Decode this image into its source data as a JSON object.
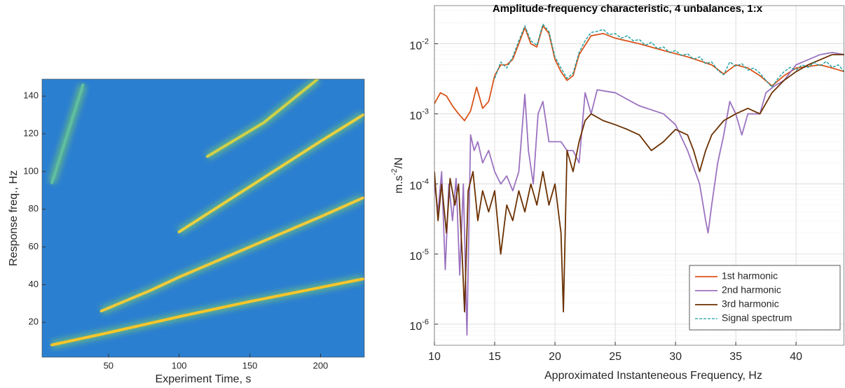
{
  "chart_data": [
    {
      "type": "spectrogram",
      "x_label": "Experiment Time, s",
      "y_label": "Response freq., Hz",
      "xlim": [
        3,
        231
      ],
      "ylim": [
        1.5,
        149
      ],
      "xticks": [
        50,
        100,
        150,
        200
      ],
      "yticks": [
        20,
        40,
        60,
        80,
        100,
        120,
        140
      ],
      "background": "#2b7fd0",
      "series": [
        {
          "color": "#f7c52a",
          "x": [
            10,
            50,
            100,
            150,
            200,
            230
          ],
          "values": [
            8,
            14.5,
            23,
            31,
            38.5,
            43
          ]
        },
        {
          "color": "#f2c93a",
          "x": [
            45,
            80,
            100,
            150,
            200,
            230
          ],
          "values": [
            26,
            37,
            44,
            60,
            76,
            86
          ]
        },
        {
          "color": "#e9cf40",
          "x": [
            100,
            150,
            200,
            230
          ],
          "values": [
            68,
            92,
            116,
            130
          ]
        },
        {
          "color": "#cfd04a",
          "x": [
            120,
            160,
            198
          ],
          "values": [
            108,
            126,
            149
          ]
        },
        {
          "color": "#5fbfa0",
          "x": [
            10,
            32
          ],
          "values": [
            94,
            146
          ]
        }
      ]
    },
    {
      "type": "line",
      "title": "Amplitude-frequency characteristic, 4 unbalances, 1:x",
      "x_label": "Approximated Instanteneous Frequency, Hz",
      "y_label": {
        "text": "m.s",
        "superscript": "-2",
        "suffix": "/N"
      },
      "log_y": true,
      "grid": true,
      "minor_grid": true,
      "legend": "lower right",
      "xlim": [
        10,
        44
      ],
      "ylim": [
        5e-07,
        0.035
      ],
      "xticks": [
        10,
        15,
        20,
        25,
        30,
        35,
        40
      ],
      "yticks": [
        {
          "value": 1e-06,
          "label": "10",
          "exponent": "-6"
        },
        {
          "value": 1e-05,
          "label": "10",
          "exponent": "-5"
        },
        {
          "value": 0.0001,
          "label": "10",
          "exponent": "-4"
        },
        {
          "value": 0.001,
          "label": "10",
          "exponent": "-3"
        },
        {
          "value": 0.01,
          "label": "10",
          "exponent": "-2"
        }
      ],
      "series": [
        {
          "name": "1st harmonic",
          "color": "#d95319",
          "linestyle": "solid",
          "x": [
            10,
            10.5,
            11,
            11.5,
            12,
            12.5,
            13,
            13.5,
            14,
            14.5,
            15,
            15.5,
            16,
            16.5,
            17,
            17.5,
            18,
            18.5,
            19,
            19.5,
            20,
            20.5,
            21,
            21.5,
            22,
            23,
            24,
            25,
            27,
            29,
            31,
            33,
            34,
            35,
            36,
            37,
            38,
            39,
            40,
            42,
            43,
            44
          ],
          "values": [
            0.0014,
            0.002,
            0.0018,
            0.0013,
            0.001,
            0.0008,
            0.0011,
            0.0024,
            0.0012,
            0.0015,
            0.0035,
            0.005,
            0.005,
            0.006,
            0.01,
            0.017,
            0.01,
            0.009,
            0.018,
            0.014,
            0.006,
            0.004,
            0.003,
            0.0035,
            0.007,
            0.013,
            0.014,
            0.012,
            0.01,
            0.008,
            0.0065,
            0.005,
            0.0037,
            0.005,
            0.0045,
            0.0035,
            0.0025,
            0.0035,
            0.0045,
            0.005,
            0.0045,
            0.004
          ]
        },
        {
          "name": "2nd harmonic",
          "color": "#9b72c0",
          "linestyle": "solid",
          "x": [
            10,
            10.3,
            10.6,
            10.9,
            11.2,
            11.5,
            11.8,
            12.1,
            12.4,
            12.7,
            13,
            13.3,
            13.6,
            14,
            14.5,
            15,
            15.5,
            16,
            16.5,
            17,
            17.5,
            17.8,
            18.2,
            18.6,
            19,
            19.5,
            20,
            20.5,
            21,
            21.5,
            22,
            22.5,
            23,
            23.5,
            25,
            27,
            29,
            30,
            31,
            32,
            32.5,
            32.7,
            33,
            33.5,
            34,
            34.5,
            35,
            35.5,
            36,
            37,
            37.5,
            38.2,
            39,
            40,
            42,
            43,
            44
          ],
          "values": [
            0.0001,
            4e-05,
            0.00015,
            6e-06,
            0.0001,
            3e-05,
            0.00012,
            5e-06,
            0.0001,
            7e-07,
            0.0005,
            0.0003,
            0.0004,
            0.0002,
            0.0003,
            0.00015,
            0.0001,
            0.00013,
            8e-05,
            0.00015,
            0.0019,
            0.0003,
            0.0001,
            0.001,
            0.0015,
            0.0004,
            0.0004,
            0.0004,
            0.0003,
            0.0003,
            0.0002,
            0.002,
            0.001,
            0.0022,
            0.002,
            0.0013,
            0.001,
            0.0007,
            0.0003,
            0.0001,
            3e-05,
            2e-05,
            5e-05,
            0.0002,
            0.0005,
            0.0015,
            0.001,
            0.0005,
            0.001,
            0.001,
            0.002,
            0.0025,
            0.003,
            0.005,
            0.007,
            0.0075,
            0.007
          ]
        },
        {
          "name": "3rd harmonic",
          "color": "#6b3000",
          "linestyle": "solid",
          "x": [
            10,
            10.3,
            10.6,
            11,
            11.3,
            11.7,
            12,
            12.3,
            12.5,
            12.8,
            13.2,
            13.6,
            14,
            14.5,
            15,
            15.5,
            16,
            16.5,
            17,
            17.5,
            18,
            18.5,
            19,
            19.5,
            20,
            20.5,
            20.7,
            21,
            21.5,
            22,
            22.5,
            23,
            24,
            25,
            26,
            27,
            28,
            29,
            30,
            31,
            31.5,
            32,
            32.5,
            33,
            34,
            35,
            36,
            37,
            38,
            39,
            40,
            41,
            43,
            44
          ],
          "values": [
            0.00015,
            3e-05,
            0.0001,
            2e-05,
            0.00012,
            5e-05,
            0.0001,
            1e-05,
            1.5e-06,
            8e-05,
            0.00015,
            3e-05,
            8e-05,
            4e-05,
            8e-05,
            1e-05,
            5e-05,
            3e-05,
            8e-05,
            4e-05,
            0.0001,
            5e-05,
            0.00015,
            5e-05,
            0.0001,
            2e-05,
            1.5e-06,
            0.0003,
            0.00015,
            0.0004,
            0.0008,
            0.001,
            0.0008,
            0.0007,
            0.0006,
            0.0005,
            0.0003,
            0.0004,
            0.0006,
            0.0005,
            0.0003,
            0.00015,
            0.0003,
            0.0005,
            0.0008,
            0.001,
            0.0012,
            0.001,
            0.002,
            0.003,
            0.004,
            0.005,
            0.007,
            0.007
          ]
        },
        {
          "name": "Signal spectrum",
          "color": "#1a9e9e",
          "linestyle": "dashed",
          "x": [
            15,
            15.5,
            16,
            16.5,
            17,
            17.5,
            18,
            18.5,
            19,
            19.5,
            20,
            20.5,
            21,
            21.5,
            22,
            22.5,
            23,
            23.5,
            24,
            24.5,
            25,
            25.5,
            26,
            26.5,
            27,
            27.5,
            28,
            28.5,
            29,
            29.5,
            30,
            30.5,
            31,
            31.5,
            32,
            32.5,
            33,
            33.5,
            34,
            34.5,
            35,
            35.5,
            36,
            36.5,
            37,
            37.5,
            38,
            38.5,
            39,
            39.5,
            40,
            40.5,
            41,
            41.5,
            42,
            42.5,
            43,
            43.5,
            44
          ],
          "values": [
            0.0032,
            0.0055,
            0.0045,
            0.0065,
            0.011,
            0.018,
            0.011,
            0.0095,
            0.019,
            0.015,
            0.0065,
            0.0045,
            0.0032,
            0.0038,
            0.0075,
            0.011,
            0.0145,
            0.015,
            0.016,
            0.0135,
            0.014,
            0.012,
            0.013,
            0.011,
            0.0115,
            0.0095,
            0.0105,
            0.0085,
            0.009,
            0.0075,
            0.008,
            0.0068,
            0.0072,
            0.006,
            0.0065,
            0.0052,
            0.0055,
            0.0042,
            0.0036,
            0.0055,
            0.0048,
            0.0052,
            0.0042,
            0.0045,
            0.0038,
            0.003,
            0.0024,
            0.0032,
            0.004,
            0.0046,
            0.0042,
            0.005,
            0.0046,
            0.0054,
            0.0048,
            0.0056,
            0.0046,
            0.005,
            0.004
          ]
        }
      ]
    }
  ]
}
